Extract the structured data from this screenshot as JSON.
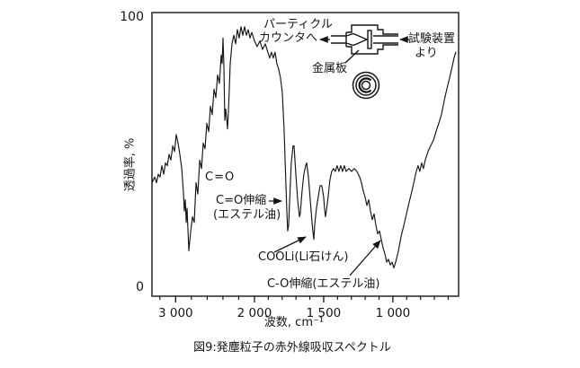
{
  "figure": {
    "caption": "図9:発塵粒子の赤外線吸収スペクトル"
  },
  "inset": {
    "to_counter_line1": "パーティクル",
    "to_counter_line2": "カウンタへ",
    "from_apparatus_line1": "試験装置",
    "from_apparatus_line2": "より",
    "metal_plate": "金属板"
  },
  "annotations": {
    "co": "C=O",
    "co_stretch": "C=O伸縮",
    "ester_oil": "(エステル油)",
    "cooli": "COOLi(Li石けん)",
    "co_single_stretch": "C-O伸縮(エステル油)"
  },
  "colors": {
    "ink": "#151515",
    "background": "#ffffff"
  },
  "chart_data": {
    "type": "line",
    "title": "図9:発塵粒子の赤外線吸収スペクトル",
    "xlabel": "波数, cm⁻¹",
    "ylabel": "透過率, %",
    "grid": false,
    "y_axis": {
      "ylim": [
        0,
        100
      ],
      "max_label": "100",
      "min_label": "0"
    },
    "x_axis": {
      "xlim_left": 3300,
      "xlim_right": 525,
      "scale_break_at": 2000,
      "direction": "decreasing",
      "major_ticks": [
        {
          "value": 3000,
          "label": "3 000"
        },
        {
          "value": 2000,
          "label": "2 000"
        },
        {
          "value": 1500,
          "label": "1 500"
        },
        {
          "value": 1000,
          "label": "1 000"
        }
      ],
      "minor_ticks": [
        3200,
        2800,
        2600,
        2400,
        2200,
        1900,
        1800,
        1700,
        1600,
        1400,
        1300,
        1200,
        1100,
        900,
        800,
        700,
        600
      ]
    },
    "series": [
      {
        "name": "発塵粒子の赤外線吸収スペクトル (IR transmittance of dust particles)",
        "points": [
          [
            3300,
            40
          ],
          [
            3266,
            42
          ],
          [
            3243,
            40
          ],
          [
            3220,
            43
          ],
          [
            3197,
            42
          ],
          [
            3174,
            46
          ],
          [
            3151,
            43
          ],
          [
            3129,
            47
          ],
          [
            3106,
            46
          ],
          [
            3083,
            50
          ],
          [
            3060,
            48
          ],
          [
            3037,
            53
          ],
          [
            3014,
            51
          ],
          [
            2992,
            57
          ],
          [
            2969,
            54
          ],
          [
            2946,
            50
          ],
          [
            2923,
            45
          ],
          [
            2900,
            36
          ],
          [
            2889,
            30
          ],
          [
            2877,
            34
          ],
          [
            2866,
            26
          ],
          [
            2855,
            31
          ],
          [
            2832,
            16
          ],
          [
            2809,
            23
          ],
          [
            2786,
            28
          ],
          [
            2764,
            26
          ],
          [
            2741,
            40
          ],
          [
            2718,
            36
          ],
          [
            2695,
            48
          ],
          [
            2672,
            45
          ],
          [
            2650,
            54
          ],
          [
            2627,
            52
          ],
          [
            2604,
            61
          ],
          [
            2581,
            58
          ],
          [
            2559,
            67
          ],
          [
            2536,
            64
          ],
          [
            2513,
            73
          ],
          [
            2490,
            70
          ],
          [
            2467,
            78
          ],
          [
            2445,
            75
          ],
          [
            2422,
            85
          ],
          [
            2410,
            82
          ],
          [
            2399,
            91
          ],
          [
            2388,
            81
          ],
          [
            2376,
            62
          ],
          [
            2365,
            66
          ],
          [
            2353,
            63
          ],
          [
            2342,
            59
          ],
          [
            2331,
            65
          ],
          [
            2319,
            73
          ],
          [
            2308,
            82
          ],
          [
            2285,
            89
          ],
          [
            2262,
            92
          ],
          [
            2239,
            89
          ],
          [
            2217,
            94
          ],
          [
            2194,
            91
          ],
          [
            2171,
            95
          ],
          [
            2148,
            92
          ],
          [
            2125,
            95
          ],
          [
            2103,
            92
          ],
          [
            2080,
            94
          ],
          [
            2057,
            91
          ],
          [
            2034,
            93
          ],
          [
            2000,
            90
          ],
          [
            1981,
            88
          ],
          [
            1961,
            90
          ],
          [
            1942,
            87
          ],
          [
            1922,
            89
          ],
          [
            1903,
            86
          ],
          [
            1890,
            84
          ],
          [
            1877,
            86
          ],
          [
            1864,
            84
          ],
          [
            1851,
            86
          ],
          [
            1838,
            82
          ],
          [
            1825,
            80
          ],
          [
            1812,
            77
          ],
          [
            1799,
            72
          ],
          [
            1786,
            59
          ],
          [
            1773,
            40
          ],
          [
            1766,
            30
          ],
          [
            1760,
            23
          ],
          [
            1753,
            25
          ],
          [
            1747,
            32
          ],
          [
            1734,
            47
          ],
          [
            1721,
            53
          ],
          [
            1714,
            53
          ],
          [
            1701,
            43
          ],
          [
            1688,
            34
          ],
          [
            1675,
            28
          ],
          [
            1669,
            29
          ],
          [
            1656,
            37
          ],
          [
            1643,
            43
          ],
          [
            1630,
            46
          ],
          [
            1623,
            47
          ],
          [
            1610,
            42
          ],
          [
            1597,
            34
          ],
          [
            1584,
            26
          ],
          [
            1578,
            23
          ],
          [
            1571,
            20
          ],
          [
            1565,
            25
          ],
          [
            1552,
            31
          ],
          [
            1539,
            35
          ],
          [
            1526,
            39
          ],
          [
            1513,
            39
          ],
          [
            1500,
            35
          ],
          [
            1494,
            31
          ],
          [
            1487,
            28
          ],
          [
            1481,
            30
          ],
          [
            1468,
            35
          ],
          [
            1455,
            41
          ],
          [
            1442,
            44
          ],
          [
            1429,
            45
          ],
          [
            1416,
            44
          ],
          [
            1403,
            46
          ],
          [
            1390,
            44
          ],
          [
            1377,
            46
          ],
          [
            1364,
            44
          ],
          [
            1351,
            46
          ],
          [
            1338,
            44
          ],
          [
            1318,
            45
          ],
          [
            1299,
            44
          ],
          [
            1279,
            45
          ],
          [
            1260,
            44
          ],
          [
            1240,
            42
          ],
          [
            1227,
            40
          ],
          [
            1214,
            37
          ],
          [
            1201,
            35
          ],
          [
            1188,
            32
          ],
          [
            1175,
            34
          ],
          [
            1162,
            30
          ],
          [
            1149,
            27
          ],
          [
            1136,
            29
          ],
          [
            1123,
            25
          ],
          [
            1110,
            22
          ],
          [
            1097,
            23
          ],
          [
            1084,
            20
          ],
          [
            1071,
            17
          ],
          [
            1058,
            15
          ],
          [
            1045,
            12
          ],
          [
            1032,
            13
          ],
          [
            1019,
            11
          ],
          [
            1006,
            12
          ],
          [
            993,
            10
          ],
          [
            980,
            12
          ],
          [
            960,
            16
          ],
          [
            941,
            21
          ],
          [
            921,
            25
          ],
          [
            902,
            29
          ],
          [
            883,
            33
          ],
          [
            863,
            37
          ],
          [
            844,
            41
          ],
          [
            831,
            44
          ],
          [
            818,
            46
          ],
          [
            805,
            44
          ],
          [
            792,
            47
          ],
          [
            779,
            45
          ],
          [
            766,
            48
          ],
          [
            746,
            51
          ],
          [
            727,
            53
          ],
          [
            707,
            55
          ],
          [
            688,
            58
          ],
          [
            668,
            61
          ],
          [
            649,
            64
          ],
          [
            629,
            69
          ],
          [
            610,
            73
          ],
          [
            590,
            77
          ],
          [
            571,
            81
          ],
          [
            558,
            84
          ],
          [
            545,
            86
          ]
        ]
      }
    ]
  }
}
